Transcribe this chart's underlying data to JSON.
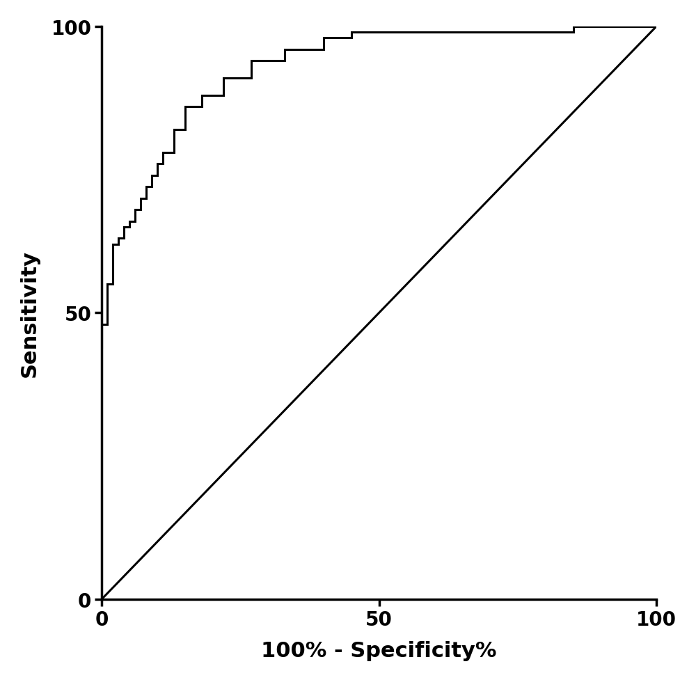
{
  "title": "",
  "xlabel": "100% - Specificity%",
  "ylabel": "Sensitivity",
  "xlim": [
    0,
    100
  ],
  "ylim": [
    0,
    100
  ],
  "xticks": [
    0,
    50,
    100
  ],
  "yticks": [
    0,
    50,
    100
  ],
  "background_color": "#ffffff",
  "line_color": "#000000",
  "diagonal_color": "#000000",
  "line_width": 2.2,
  "xlabel_fontsize": 22,
  "ylabel_fontsize": 22,
  "tick_fontsize": 20,
  "roc_x": [
    0,
    0,
    1,
    1,
    1,
    1,
    2,
    2,
    2,
    2,
    3,
    3,
    4,
    4,
    5,
    5,
    6,
    6,
    7,
    7,
    8,
    8,
    9,
    9,
    10,
    10,
    11,
    11,
    13,
    13,
    15,
    15,
    18,
    18,
    22,
    22,
    27,
    27,
    33,
    33,
    40,
    40,
    45,
    45,
    55,
    55,
    60,
    60,
    65,
    65,
    85,
    85,
    100,
    100
  ],
  "roc_y": [
    44,
    48,
    48,
    50,
    53,
    55,
    55,
    57,
    60,
    62,
    62,
    63,
    63,
    65,
    65,
    66,
    66,
    68,
    68,
    70,
    70,
    72,
    72,
    74,
    74,
    76,
    76,
    78,
    78,
    82,
    82,
    86,
    86,
    88,
    88,
    91,
    91,
    94,
    94,
    96,
    96,
    98,
    98,
    99,
    99,
    99,
    99,
    99,
    99,
    99,
    99,
    100,
    100,
    100
  ]
}
